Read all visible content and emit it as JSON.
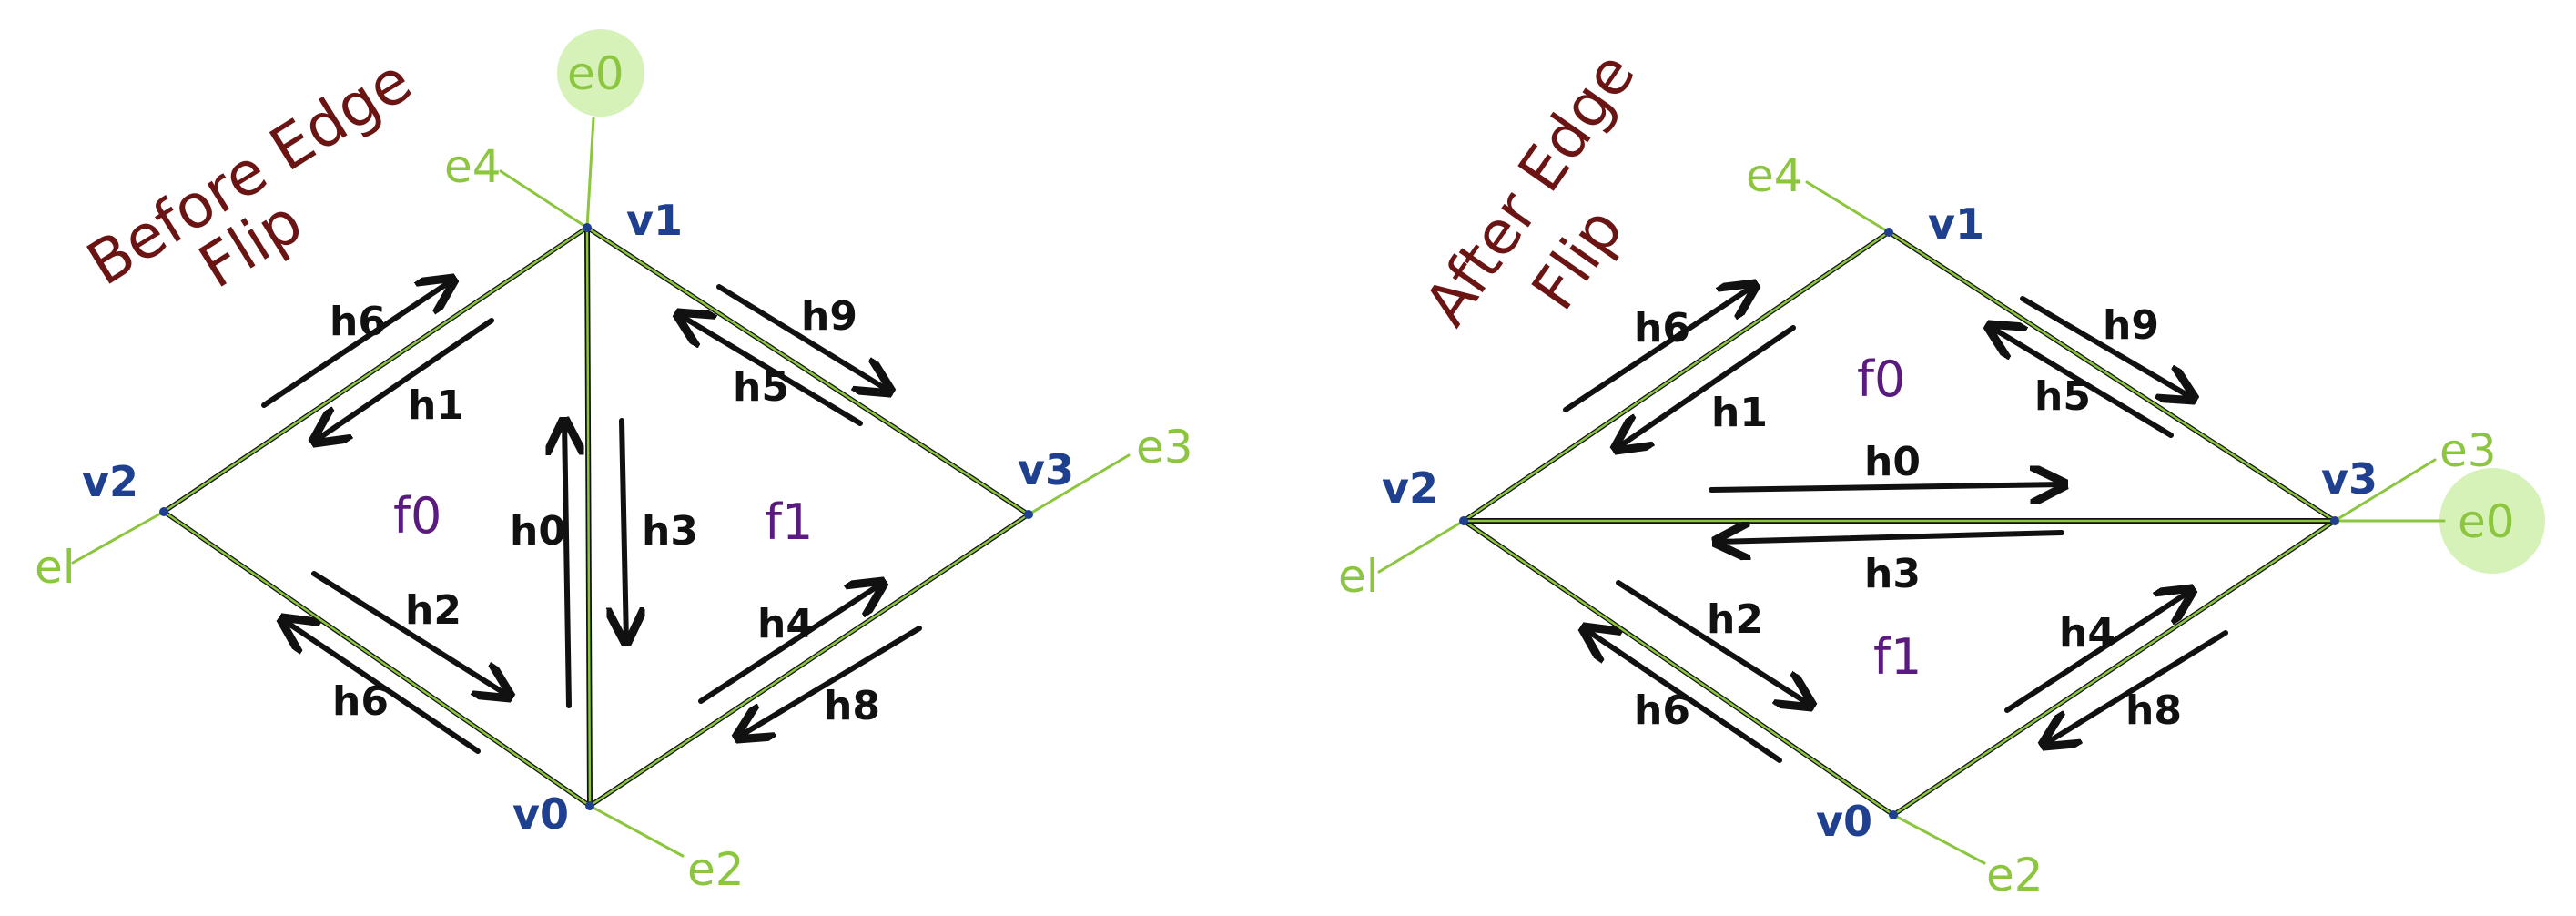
{
  "before": {
    "title_line1": "Before Edge",
    "title_line2": "Flip",
    "vertices": [
      "v0",
      "v1",
      "v2",
      "v3"
    ],
    "edges": {
      "e0": "e0",
      "e1": "el",
      "e2": "e2",
      "e3": "e3",
      "e4": "e4"
    },
    "faces": [
      "f0",
      "f1"
    ],
    "halfedges": {
      "h0": "h0",
      "h1": "h1",
      "h2": "h2",
      "h3": "h3",
      "h4": "h4",
      "h5": "h5",
      "h6a": "h6",
      "h6b": "h6",
      "h8": "h8",
      "h9": "h9"
    }
  },
  "after": {
    "title_line1": "After Edge",
    "title_line2": "Flip",
    "vertices": [
      "v0",
      "v1",
      "v2",
      "v3"
    ],
    "edges": {
      "e0": "e0",
      "e1": "el",
      "e2": "e2",
      "e3": "e3",
      "e4": "e4"
    },
    "faces": [
      "f0",
      "f1"
    ],
    "halfedges": {
      "h0": "h0",
      "h1": "h1",
      "h2": "h2",
      "h3": "h3",
      "h4": "h4",
      "h5": "h5",
      "h6a": "h6",
      "h6b": "h6",
      "h8": "h8",
      "h9": "h9"
    }
  },
  "colors": {
    "edge": "#8cc63f",
    "highlight": "#d6f2b8",
    "vertex": "#1f3f8f",
    "face": "#5b1a80",
    "title": "#6b1414",
    "arrow": "#111111"
  }
}
